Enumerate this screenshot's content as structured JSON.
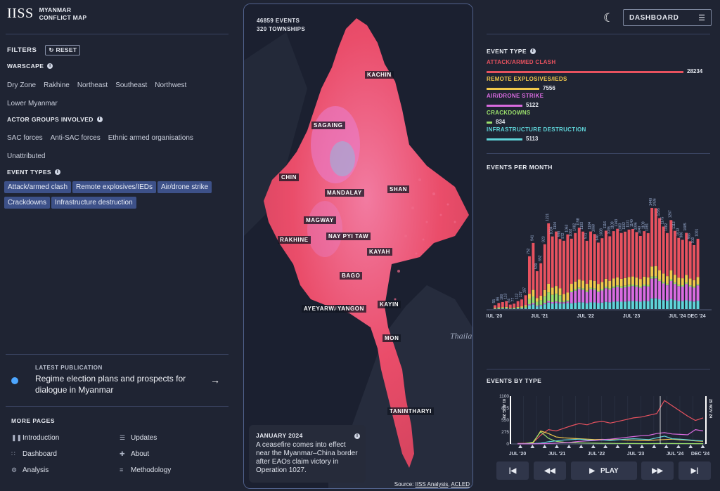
{
  "header": {
    "logo": "IISS",
    "app_line1": "MYANMAR",
    "app_line2": "CONFLICT MAP",
    "dashboard_label": "DASHBOARD"
  },
  "filters": {
    "title": "FILTERS",
    "reset": "RESET",
    "warscape": {
      "title": "WARSCAPE",
      "options": [
        "Dry Zone",
        "Rakhine",
        "Northeast",
        "Southeast",
        "Northwest",
        "Lower Myanmar"
      ]
    },
    "actors": {
      "title": "ACTOR GROUPS INVOLVED",
      "options": [
        "SAC forces",
        "Anti-SAC forces",
        "Ethnic armed organisations",
        "Unattributed"
      ]
    },
    "event_types": {
      "title": "EVENT TYPES",
      "chips": [
        "Attack/armed clash",
        "Remote explosives/IEDs",
        "Air/drone strike",
        "Crackdowns",
        "Infrastructure destruction"
      ]
    }
  },
  "publication": {
    "label": "LATEST PUBLICATION",
    "title": "Regime election plans and prospects for dialogue in Myanmar"
  },
  "more_pages": {
    "title": "MORE PAGES",
    "items": [
      "Introduction",
      "Updates",
      "Dashboard",
      "About",
      "Analysis",
      "Methodology"
    ]
  },
  "map": {
    "events": "46859 EVENTS",
    "townships": "320 TOWNSHIPS",
    "regions": [
      "KACHIN",
      "SAGAING",
      "CHIN",
      "MANDALAY",
      "SHAN",
      "MAGWAY",
      "NAY PYI TAW",
      "RAKHINE",
      "KAYAH",
      "BAGO",
      "AYEYARWADY",
      "YANGON",
      "KAYIN",
      "MON",
      "TANINTHARYI"
    ],
    "neighbor": "Thaila",
    "popup": {
      "date": "JANUARY 2024",
      "text": "A ceasefire comes into effect near the Myanmar–China border after EAOs claim victory in Operation 1027."
    },
    "source_prefix": "Source:",
    "source_1": "IISS Analysis",
    "source_sep": ",",
    "source_2": "ACLED"
  },
  "event_type_panel": {
    "title": "EVENT TYPE",
    "items": [
      {
        "name": "ATTACK/ARMED CLASH",
        "value": "28234",
        "color": "#e8525f"
      },
      {
        "name": "REMOTE EXPLOSIVES/IEDS",
        "value": "7556",
        "color": "#f2c94c"
      },
      {
        "name": "AIR/DRONE STRIKE",
        "value": "5122",
        "color": "#d96be0"
      },
      {
        "name": "CRACKDOWNS",
        "value": "834",
        "color": "#9be06b"
      },
      {
        "name": "INFRASTRUCTURE DESTRUCTION",
        "value": "5113",
        "color": "#5fd4d9"
      }
    ]
  },
  "events_per_month": {
    "title": "EVENTS PER MONTH",
    "xticks": [
      "JUL '20",
      "JUL '21",
      "JUL '22",
      "JUL '23",
      "JUL '24",
      "DEC '24"
    ]
  },
  "events_by_type": {
    "title": "EVENTS BY TYPE",
    "yticks": [
      "1100",
      "825",
      "550",
      "275",
      "0"
    ],
    "xticks": [
      "JUL '20",
      "JUL '21",
      "JUL '22",
      "JUL '23",
      "JUL '24",
      "DEC '24"
    ],
    "start_label": "01 AUG 20",
    "end_label": "25 NOV 24"
  },
  "controls": {
    "play": "PLAY"
  },
  "colors": {
    "attack": "#e8525f",
    "ied": "#f2c94c",
    "air": "#d96be0",
    "crackdown": "#9be06b",
    "infra": "#5fd4d9",
    "chip": "#3d5189"
  },
  "chart_data": {
    "type": "bar",
    "title": "EVENTS PER MONTH",
    "categories": [
      "Jul 2020",
      "Aug 2020",
      "Sep 2020",
      "Oct 2020",
      "Nov 2020",
      "Dec 2020",
      "Jan 2021",
      "Feb 2021",
      "Mar 2021",
      "Apr 2021",
      "May 2021",
      "Jun 2021",
      "Jul 2021",
      "Aug 2021",
      "Sep 2021",
      "Oct 2021",
      "Nov 2021",
      "Dec 2021",
      "Jan 2022",
      "Feb 2022",
      "Mar 2022",
      "Apr 2022",
      "May 2022",
      "Jun 2022",
      "Jul 2022",
      "Aug 2022",
      "Sep 2022",
      "Oct 2022",
      "Nov 2022",
      "Dec 2022",
      "Jan 2023",
      "Feb 2023",
      "Mar 2023",
      "Apr 2023",
      "May 2023",
      "Jun 2023",
      "Jul 2023",
      "Aug 2023",
      "Sep 2023",
      "Oct 2023",
      "Nov 2023",
      "Dec 2023",
      "Jan 2024",
      "Feb 2024",
      "Mar 2024",
      "Apr 2024",
      "May 2024",
      "Jun 2024",
      "Jul 2024",
      "Aug 2024",
      "Sep 2024",
      "Oct 2024",
      "Nov 2024",
      "Dec 2024"
    ],
    "values": [
      55,
      86,
      100,
      113,
      64,
      77,
      112,
      137,
      197,
      752,
      941,
      539,
      652,
      923,
      1221,
      1034,
      1104,
      998,
      972,
      1063,
      1002,
      1082,
      1158,
      1103,
      971,
      1104,
      1068,
      946,
      1008,
      1116,
      1036,
      1109,
      1143,
      1083,
      1102,
      1131,
      1140,
      1096,
      1040,
      1109,
      1081,
      1440,
      1436,
      1295,
      1175,
      1082,
      1267,
      1113,
      1013,
      986,
      1085,
      966,
      910,
      1001
    ],
    "ylim": [
      0,
      1500
    ]
  }
}
